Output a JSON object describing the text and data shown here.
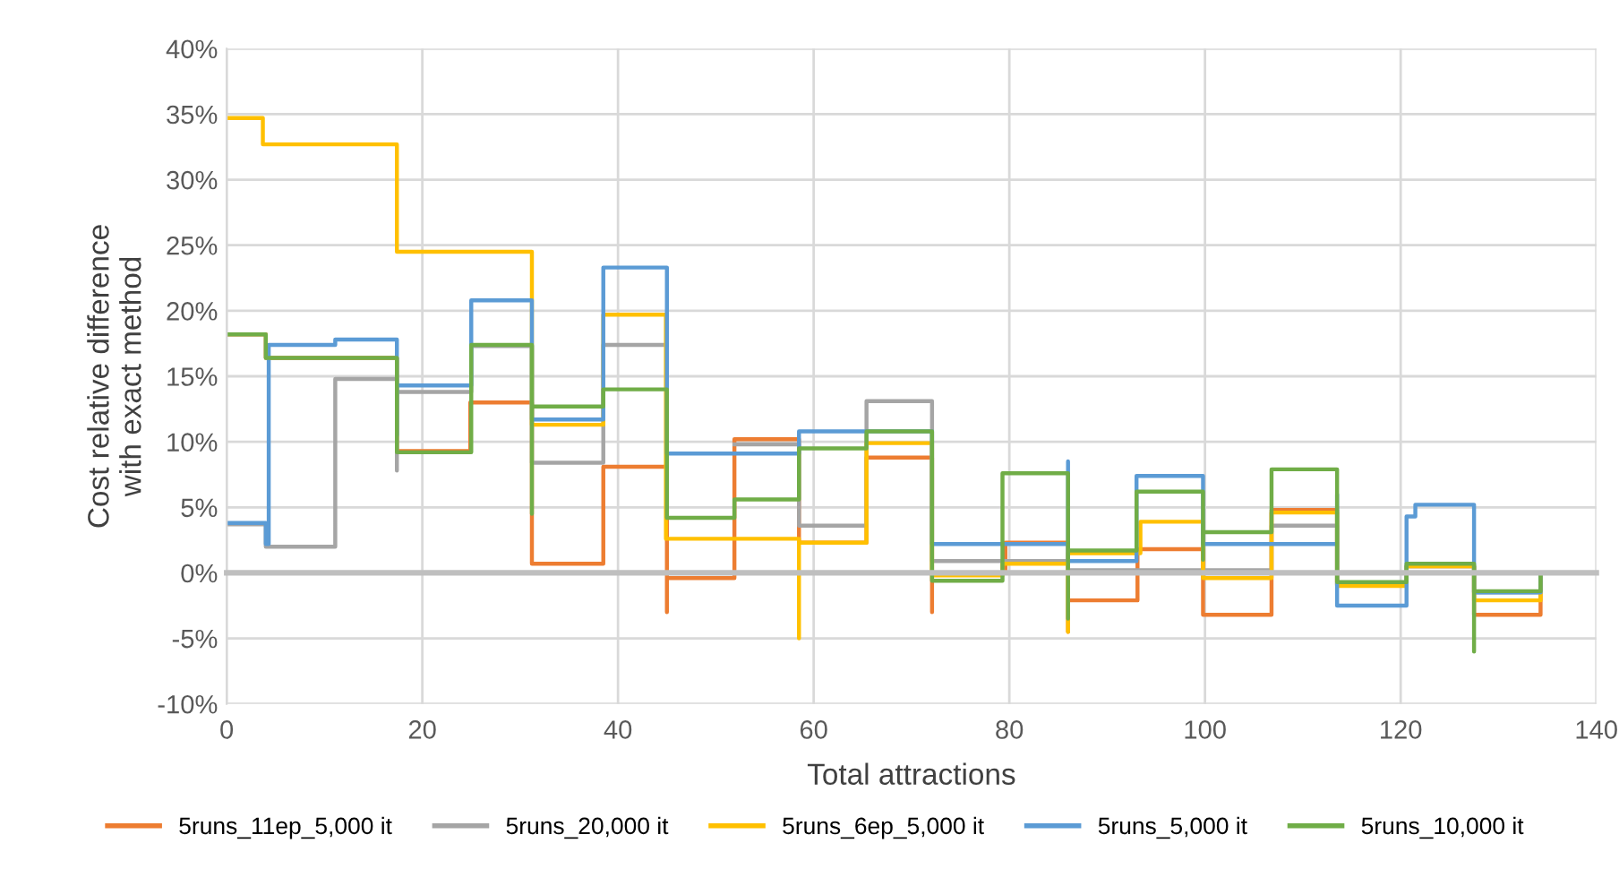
{
  "chart_data": {
    "type": "step",
    "xlabel": "Total attractions",
    "ylabel": "Cost relative difference\nwith exact method",
    "xlim": [
      0,
      140
    ],
    "xticks": [
      0,
      20,
      40,
      60,
      80,
      100,
      120,
      140
    ],
    "ylim": [
      -10,
      40
    ],
    "yticks": [
      {
        "value": -10,
        "label": "-10%"
      },
      {
        "value": -5,
        "label": "-5%"
      },
      {
        "value": 0,
        "label": "0%"
      },
      {
        "value": 5,
        "label": "5%"
      },
      {
        "value": 10,
        "label": "10%"
      },
      {
        "value": 15,
        "label": "15%"
      },
      {
        "value": 20,
        "label": "20%"
      },
      {
        "value": 25,
        "label": "25%"
      },
      {
        "value": 30,
        "label": "30%"
      },
      {
        "value": 35,
        "label": "35%"
      },
      {
        "value": 40,
        "label": "40%"
      }
    ],
    "grid": true,
    "legend": "bottom",
    "marker": "none",
    "line_style": "solid",
    "series": [
      {
        "name": "5runs_11ep_5,000 it",
        "color": "#ed7d31",
        "x": [
          0,
          4,
          17.4,
          24.9,
          31.2,
          38.5,
          45,
          45,
          51.9,
          58.5,
          65.4,
          72.1,
          72.1,
          79.6,
          86,
          86,
          93.1,
          99.8,
          106.8,
          113.5,
          120.6,
          127.5,
          134.3,
          140
        ],
        "values": [
          18.2,
          16.4,
          9.3,
          13.0,
          0.7,
          8.1,
          -3.0,
          -0.4,
          10.2,
          2.3,
          8.8,
          -3.0,
          0,
          2.3,
          -4.5,
          -2.1,
          1.8,
          -3.2,
          4.8,
          -0.9,
          0.5,
          -3.2,
          0,
          0
        ]
      },
      {
        "name": "5runs_20,000 it",
        "color": "#a5a5a5",
        "x": [
          0,
          4,
          11.1,
          17.4,
          17.4,
          25,
          31.2,
          38.5,
          45,
          51.9,
          58.5,
          65.4,
          72.1,
          86,
          106.8,
          113.5,
          120.6,
          127.5,
          134.3,
          140
        ],
        "values": [
          3.7,
          2.0,
          14.8,
          7.8,
          13.8,
          17.3,
          8.4,
          17.4,
          null,
          9.8,
          3.6,
          13.1,
          0.9,
          0.2,
          3.6,
          -0.9,
          0.5,
          -1.5,
          0,
          0
        ]
      },
      {
        "name": "5runs_6ep_5,000 it",
        "color": "#ffc000",
        "x": [
          0,
          3.7,
          17.4,
          31.2,
          38.5,
          44.9,
          58.5,
          58.5,
          65.4,
          72.1,
          79.3,
          86,
          86,
          93.4,
          99.8,
          106.8,
          113.5,
          120.6,
          127.5,
          134.3,
          140
        ],
        "values": [
          34.7,
          32.7,
          24.5,
          11.3,
          19.7,
          2.6,
          -5.0,
          2.3,
          9.9,
          -0.2,
          0.7,
          -4.5,
          1.5,
          3.9,
          -0.4,
          4.6,
          -1.0,
          0.5,
          -2.1,
          0,
          0
        ]
      },
      {
        "name": "5runs_5,000 it",
        "color": "#5b9bd5",
        "x": [
          0,
          4,
          4.3,
          11.1,
          17.4,
          17.4,
          25,
          31.2,
          38.5,
          45,
          58.5,
          72.1,
          86,
          86,
          93,
          99.8,
          113.5,
          113.5,
          120.6,
          121.5,
          127.5,
          134.3,
          140
        ],
        "values": [
          3.8,
          2.2,
          17.4,
          17.8,
          10.5,
          14.3,
          20.8,
          11.7,
          23.3,
          9.1,
          10.8,
          2.2,
          8.5,
          0.9,
          7.4,
          2.2,
          6.0,
          -2.5,
          4.3,
          5.2,
          -1.5,
          0,
          0
        ]
      },
      {
        "name": "5runs_10,000 it",
        "color": "#70ad47",
        "x": [
          0,
          4,
          17.4,
          25,
          31.2,
          31.2,
          38.5,
          45,
          51.9,
          58.5,
          65.4,
          72.1,
          79.3,
          86,
          86,
          93,
          99.8,
          99.8,
          106.8,
          113.5,
          120.6,
          127.5,
          127.5,
          134.3,
          140
        ],
        "values": [
          18.2,
          16.4,
          9.2,
          17.4,
          4.5,
          12.7,
          14.0,
          4.2,
          5.6,
          9.5,
          10.8,
          -0.6,
          7.6,
          -3.5,
          1.7,
          6.2,
          1.0,
          3.1,
          7.9,
          -0.7,
          0.7,
          -6.0,
          -1.4,
          0,
          0
        ]
      }
    ]
  }
}
